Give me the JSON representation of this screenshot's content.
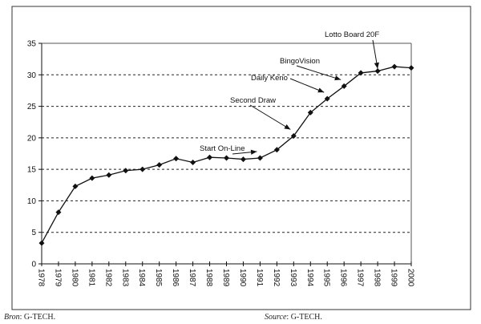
{
  "chart_data": {
    "type": "line",
    "title": "",
    "xlabel": "",
    "ylabel": "",
    "x": [
      "1978",
      "1979",
      "1980",
      "1981",
      "1982",
      "1983",
      "1984",
      "1985",
      "1986",
      "1987",
      "1988",
      "1989",
      "1990",
      "1991",
      "1992",
      "1993",
      "1994",
      "1995",
      "1996",
      "1997",
      "1998",
      "1999",
      "2000"
    ],
    "series": [
      {
        "name": "",
        "values": [
          3.3,
          8.2,
          12.3,
          13.6,
          14.1,
          14.8,
          15.0,
          15.7,
          16.7,
          16.1,
          16.9,
          16.8,
          16.6,
          16.8,
          18.1,
          20.3,
          24.0,
          26.2,
          28.2,
          30.3,
          30.6,
          31.3,
          31.1
        ]
      }
    ],
    "ylim": [
      0,
      35
    ],
    "yticks": [
      "0",
      "5",
      "10",
      "15",
      "20",
      "25",
      "30",
      "35"
    ],
    "grid": "horizontal dashed",
    "annotations": [
      {
        "text": "Start On-Line",
        "year": "1991"
      },
      {
        "text": "Second Draw",
        "year": "1993"
      },
      {
        "text": "Daily Keno",
        "year": "1995"
      },
      {
        "text": "BingoVision",
        "year": "1996"
      },
      {
        "text": "Lotto Board 20F",
        "year": "1998"
      }
    ]
  },
  "footer": {
    "left": "Bron: G-TECH.",
    "right": "Source: G-TECH."
  }
}
